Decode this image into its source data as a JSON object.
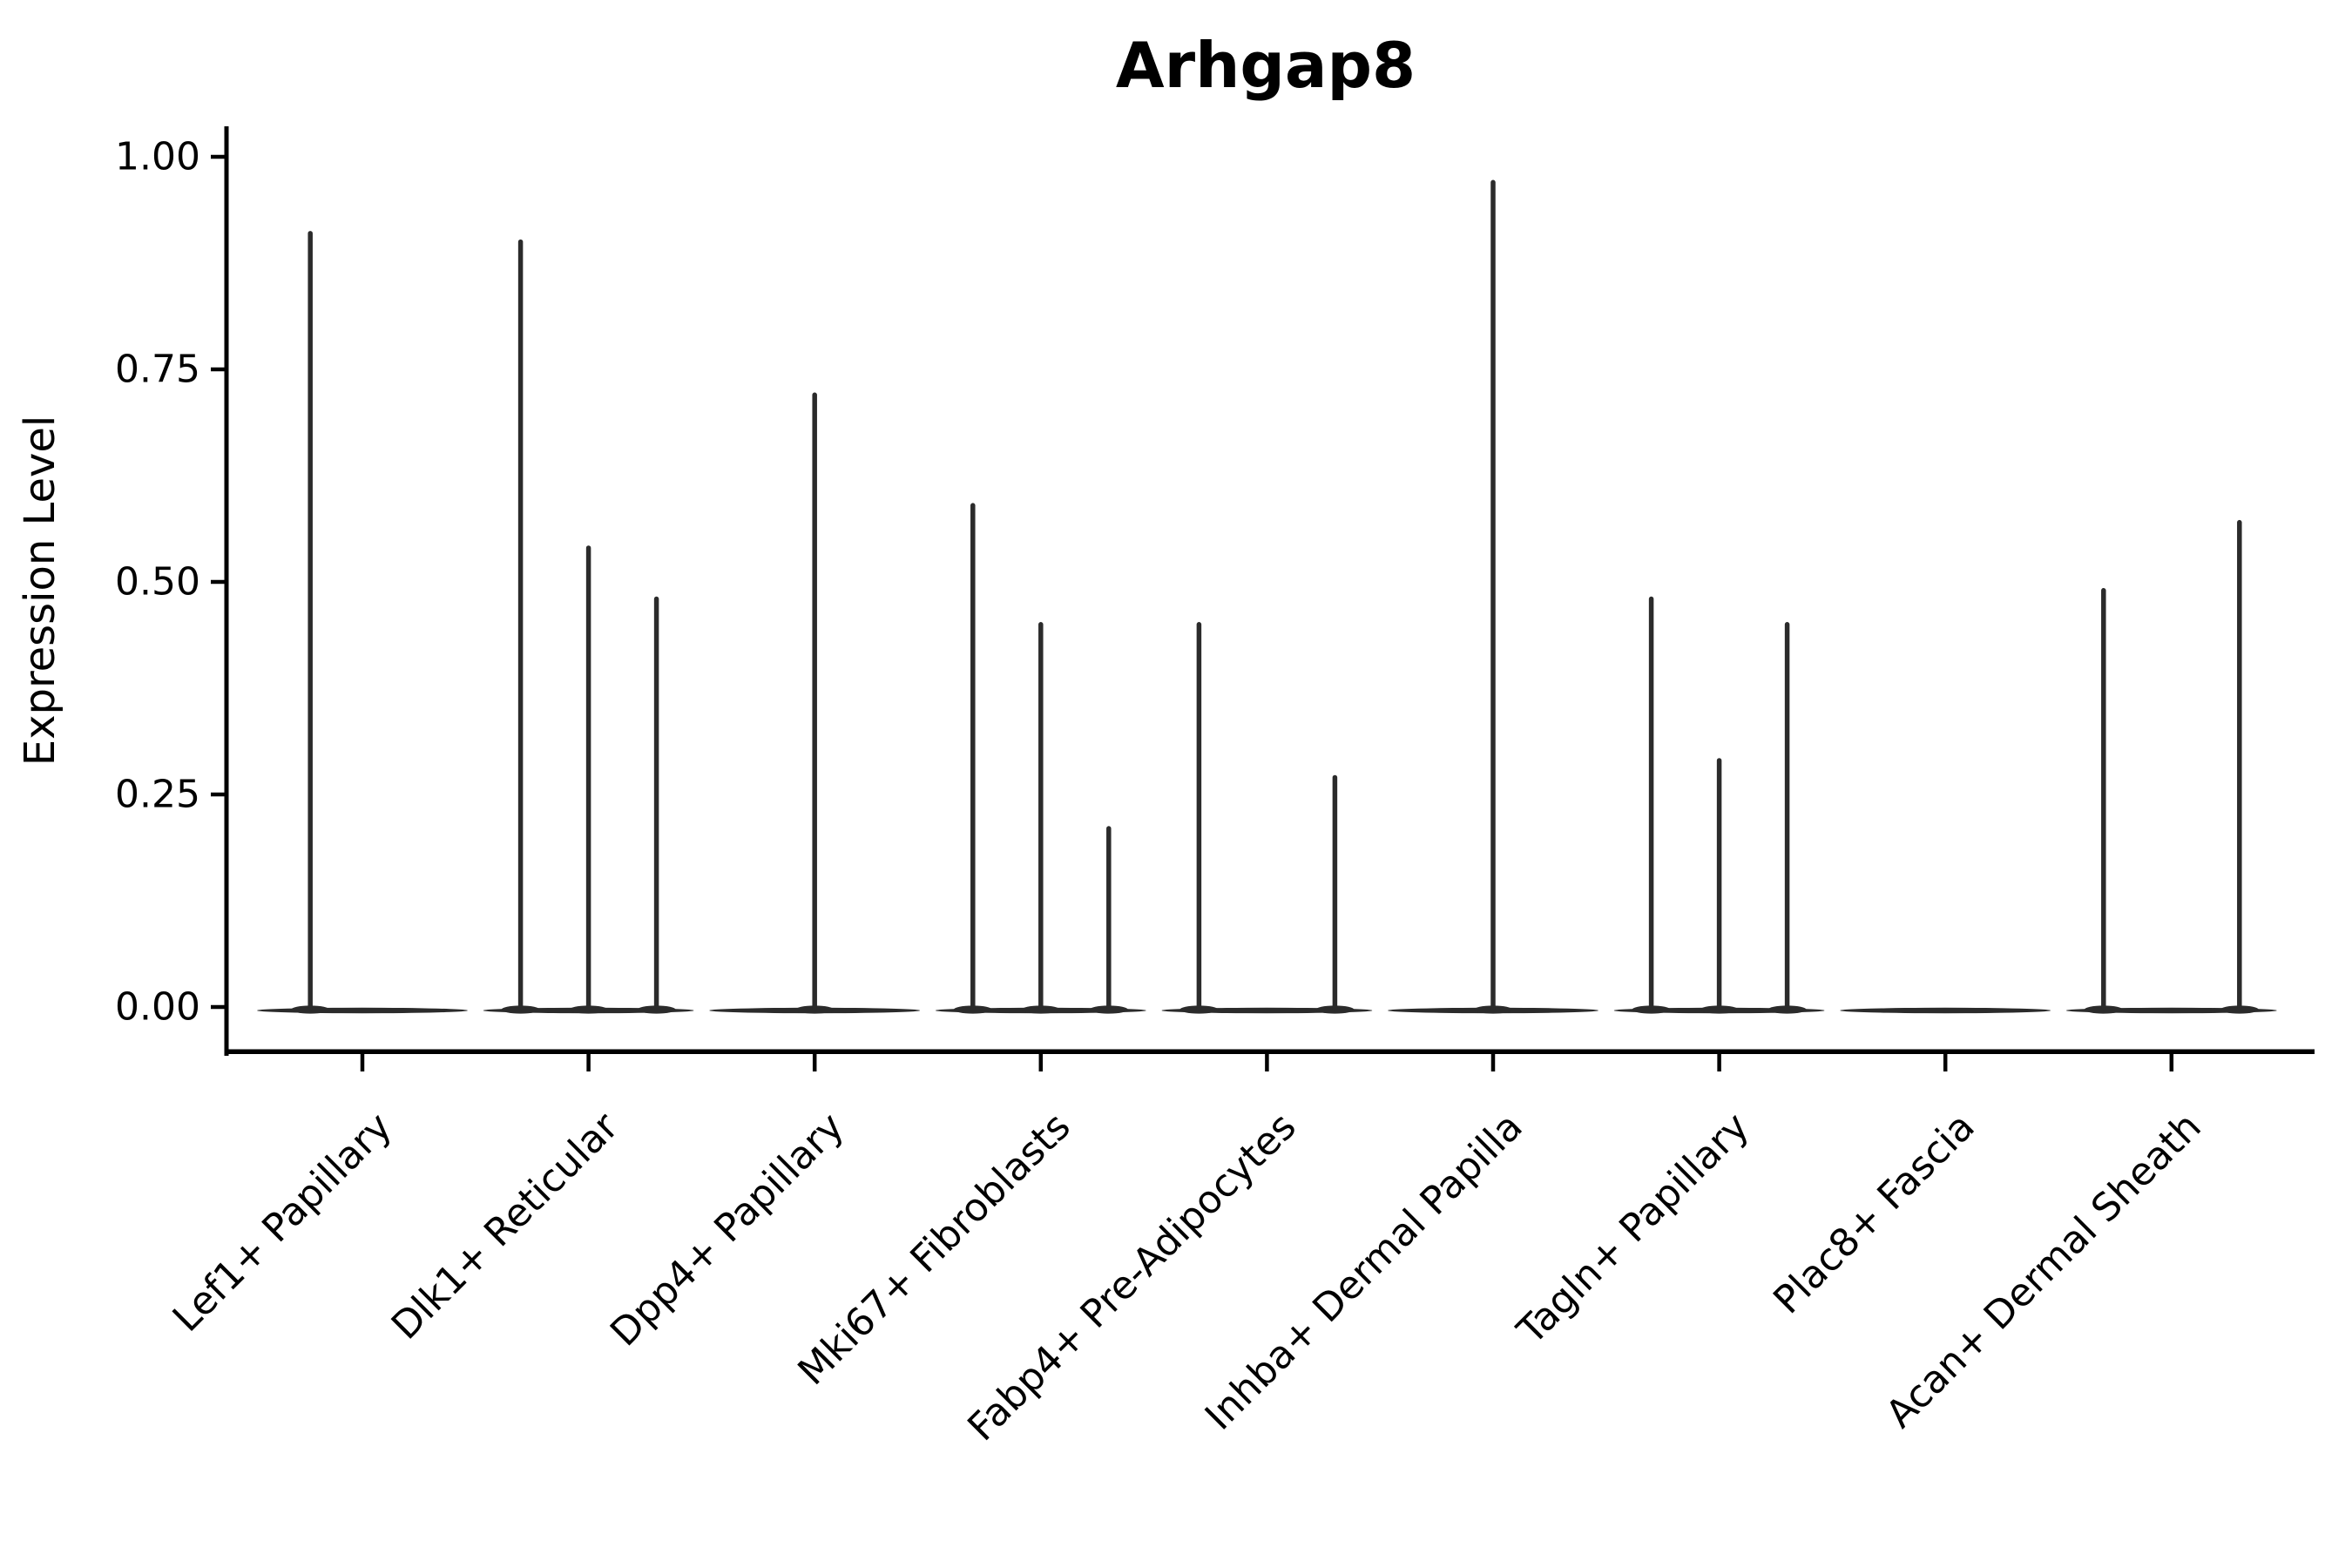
{
  "title": "Arhgap8",
  "axes": {
    "y": {
      "label": "Expression Level",
      "ticks": [
        "1.00",
        "0.75",
        "0.50",
        "0.25",
        "0.00"
      ],
      "tick_values": [
        1.0,
        0.75,
        0.5,
        0.25,
        0.0
      ]
    },
    "x": {
      "label": "",
      "categories": [
        "Lef1+ Papillary",
        "Dlk1+ Reticular",
        "Dpp4+ Papillary",
        "Mki67+ Fibroblasts",
        "Fabp4+ Pre-Adipocytes",
        "Inhba+ Dermal Papilla",
        "Tagln+ Papillary",
        "Plac8+ Fascia",
        "Acan+ Dermal Sheath"
      ]
    }
  },
  "colors": {
    "violin": "#2b2b2b",
    "axis": "#000000",
    "text": "#000000",
    "background": "#ffffff"
  },
  "chart_data": {
    "type": "violin",
    "title": "Arhgap8",
    "xlabel": "",
    "ylabel": "Expression Level",
    "ylim": [
      0,
      1.0
    ],
    "y_ticks": [
      1.0,
      0.75,
      0.5,
      0.25,
      0.0
    ],
    "grid": false,
    "legend": "none",
    "categories": [
      "Lef1+ Papillary",
      "Dlk1+ Reticular",
      "Dpp4+ Papillary",
      "Mki67+ Fibroblasts",
      "Fabp4+ Pre-Adipocytes",
      "Inhba+ Dermal Papilla",
      "Tagln+ Papillary",
      "Plac8+ Fascia",
      "Acan+ Dermal Sheath"
    ],
    "description": "Collapsed violins: each category shows a flat density body at expression 0 with thin vertical spikes rising to the maximum expression value of sparse expressing cells.",
    "body_width_frac": 0.93,
    "violins": [
      {
        "category": "Lef1+ Papillary",
        "spikes": [
          {
            "offset": -0.23,
            "max": 0.91
          }
        ]
      },
      {
        "category": "Dlk1+ Reticular",
        "spikes": [
          {
            "offset": -0.3,
            "max": 0.9
          },
          {
            "offset": 0.0,
            "max": 0.54
          },
          {
            "offset": 0.3,
            "max": 0.48
          }
        ]
      },
      {
        "category": "Dpp4+ Papillary",
        "spikes": [
          {
            "offset": 0.0,
            "max": 0.72
          }
        ]
      },
      {
        "category": "Mki67+ Fibroblasts",
        "spikes": [
          {
            "offset": -0.3,
            "max": 0.59
          },
          {
            "offset": 0.0,
            "max": 0.45
          },
          {
            "offset": 0.3,
            "max": 0.21
          }
        ]
      },
      {
        "category": "Fabp4+ Pre-Adipocytes",
        "spikes": [
          {
            "offset": -0.3,
            "max": 0.45
          },
          {
            "offset": 0.3,
            "max": 0.27
          }
        ]
      },
      {
        "category": "Inhba+ Dermal Papilla",
        "spikes": [
          {
            "offset": 0.0,
            "max": 0.97
          }
        ]
      },
      {
        "category": "Tagln+ Papillary",
        "spikes": [
          {
            "offset": -0.3,
            "max": 0.48
          },
          {
            "offset": 0.0,
            "max": 0.29
          },
          {
            "offset": 0.3,
            "max": 0.45
          }
        ]
      },
      {
        "category": "Plac8+ Fascia",
        "spikes": []
      },
      {
        "category": "Acan+ Dermal Sheath",
        "spikes": [
          {
            "offset": -0.3,
            "max": 0.49
          },
          {
            "offset": 0.3,
            "max": 0.57
          }
        ]
      }
    ]
  }
}
